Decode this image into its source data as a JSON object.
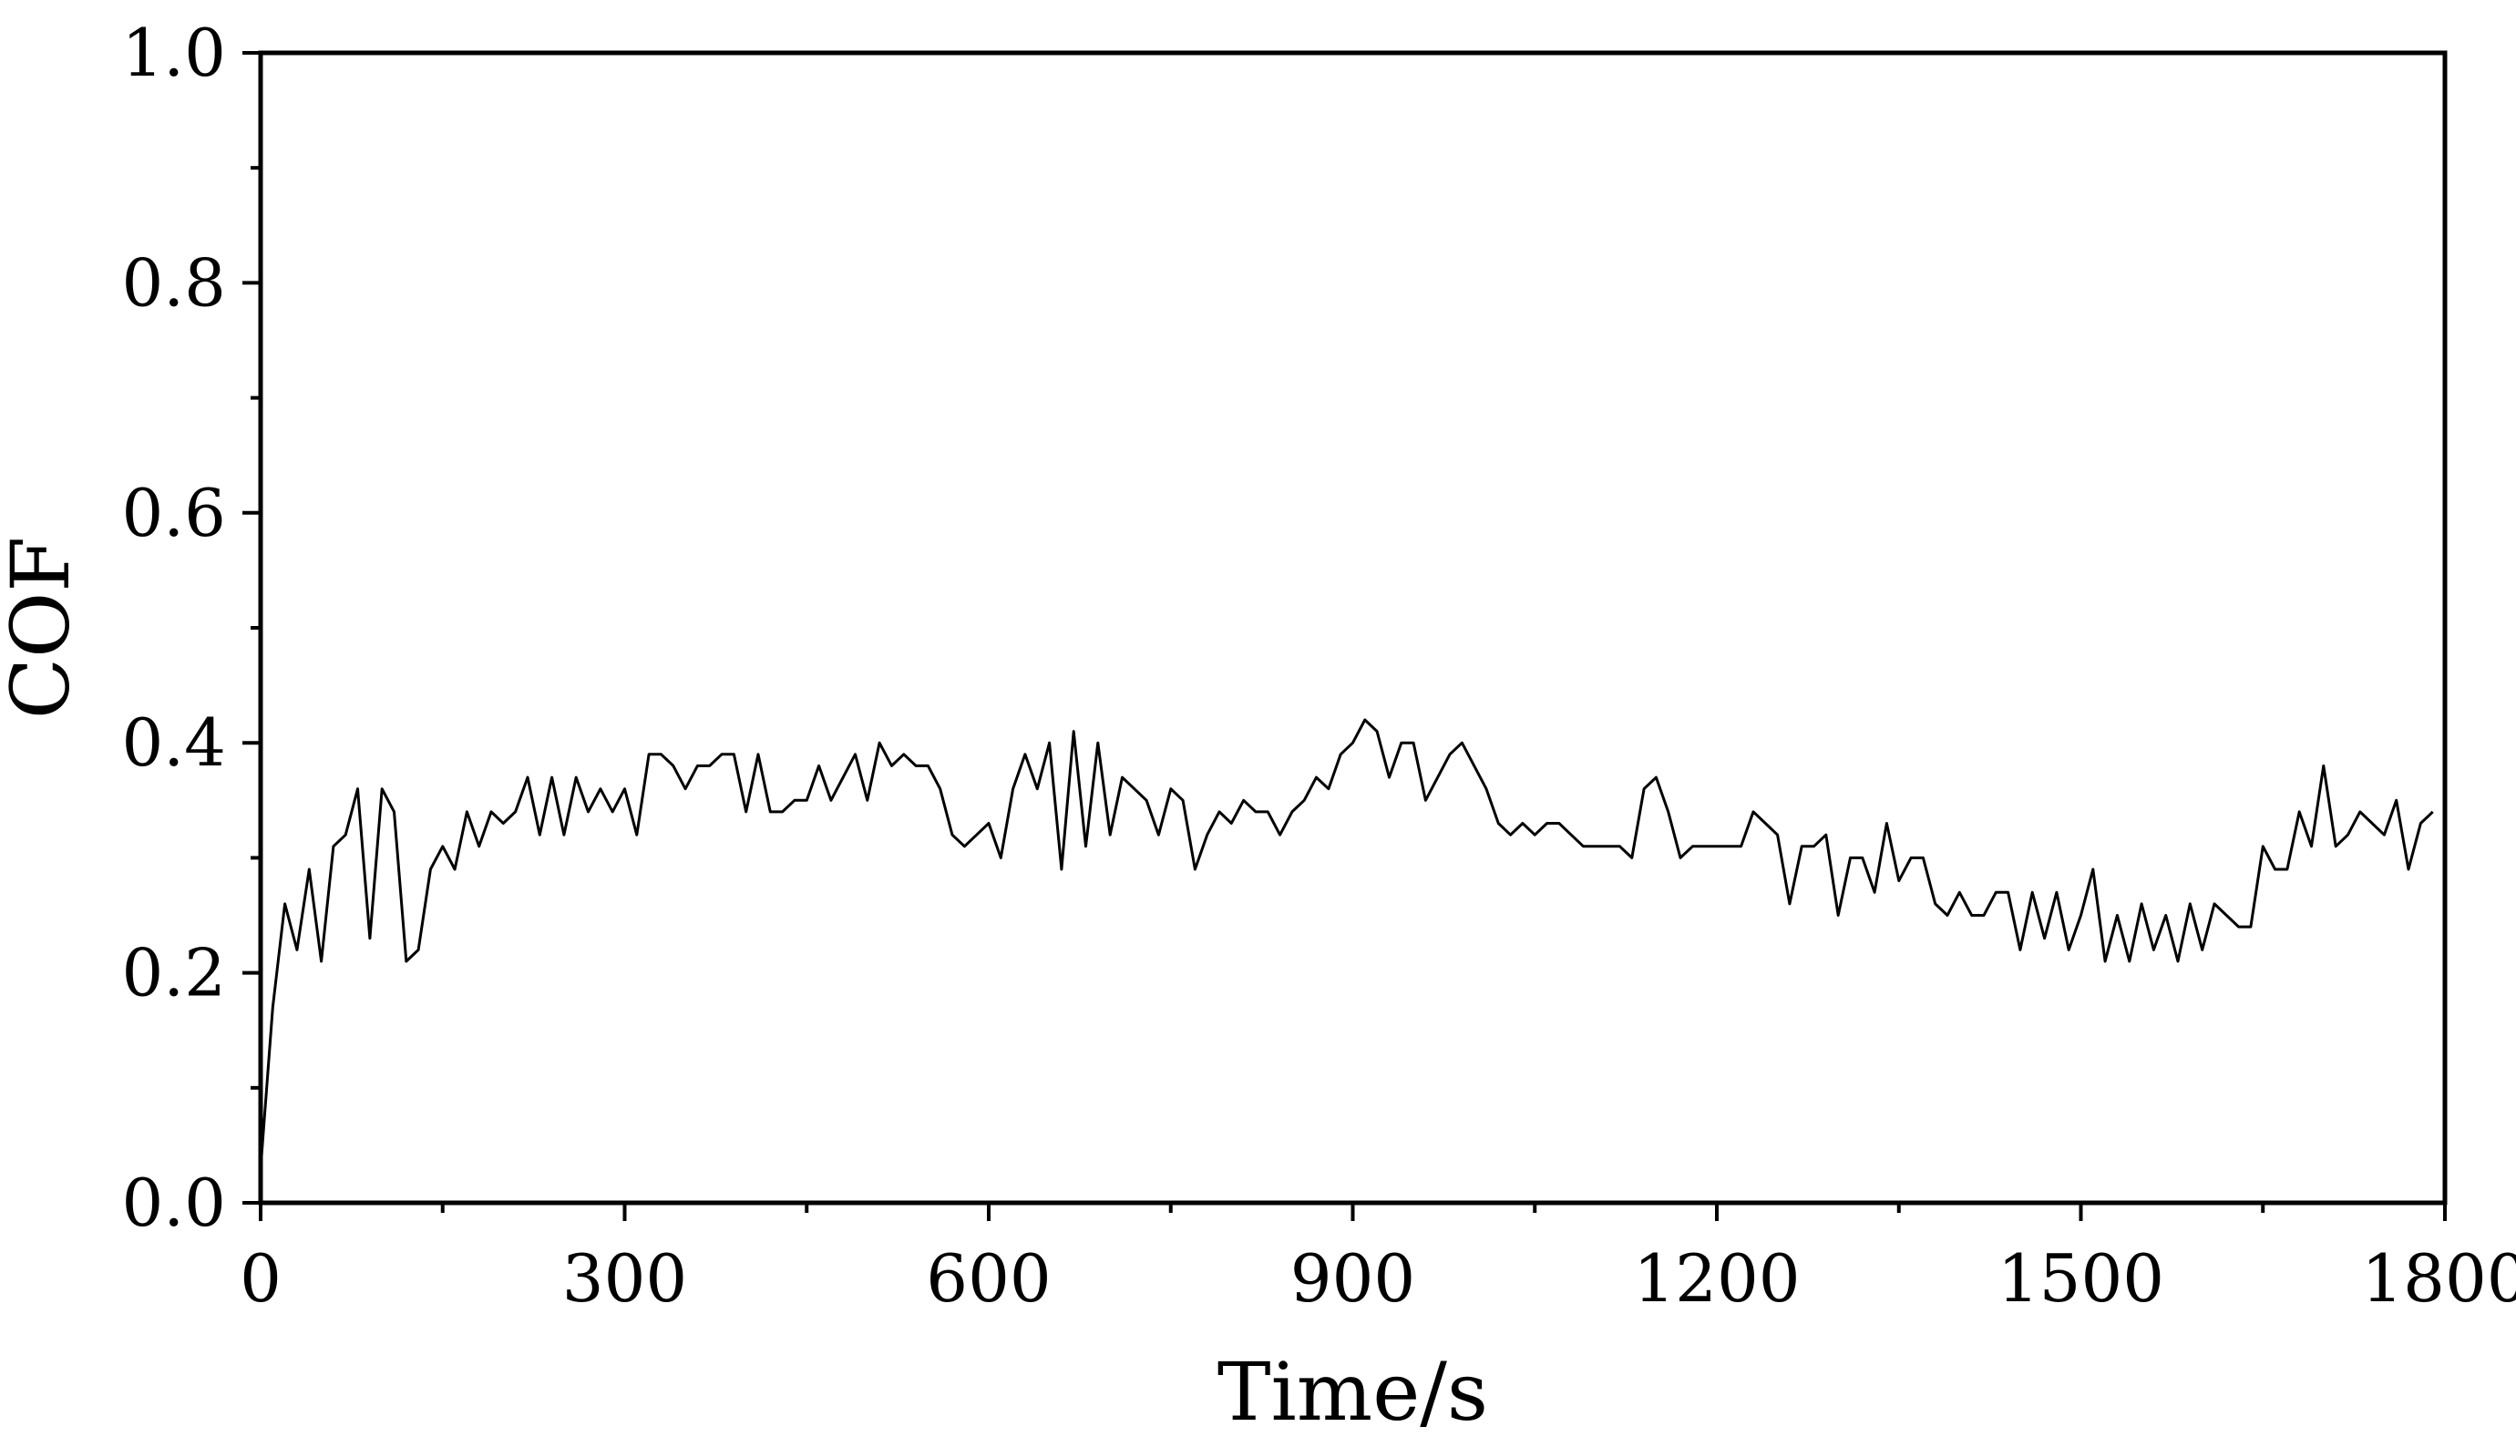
{
  "chart_data": {
    "type": "line",
    "xlabel": "Time/s",
    "ylabel": "COF",
    "xlim": [
      0,
      1800
    ],
    "ylim": [
      0.0,
      1.0
    ],
    "x_ticks": [
      0,
      300,
      600,
      900,
      1200,
      1500,
      1800
    ],
    "x_tick_labels": [
      "0",
      "300",
      "600",
      "900",
      "1200",
      "1500",
      "1800"
    ],
    "y_ticks": [
      0.0,
      0.2,
      0.4,
      0.6,
      0.8,
      1.0
    ],
    "y_tick_labels": [
      "0.0",
      "0.2",
      "0.4",
      "0.6",
      "0.8",
      "1.0"
    ],
    "grid": false,
    "line_color": "#000000",
    "series": [
      {
        "x": [
          0,
          10,
          20,
          30,
          40,
          50,
          60,
          70,
          80,
          90,
          100,
          110,
          120,
          130,
          140,
          150,
          160,
          170,
          180,
          190,
          200,
          210,
          220,
          230,
          240,
          250,
          260,
          270,
          280,
          290,
          300,
          310,
          320,
          330,
          340,
          350,
          360,
          370,
          380,
          390,
          400,
          410,
          420,
          430,
          440,
          450,
          460,
          470,
          480,
          490,
          500,
          510,
          520,
          530,
          540,
          550,
          560,
          570,
          580,
          590,
          600,
          610,
          620,
          630,
          640,
          650,
          660,
          670,
          680,
          690,
          700,
          710,
          720,
          730,
          740,
          750,
          760,
          770,
          780,
          790,
          800,
          810,
          820,
          830,
          840,
          850,
          860,
          870,
          880,
          890,
          900,
          910,
          920,
          930,
          940,
          950,
          960,
          970,
          980,
          990,
          1000,
          1010,
          1020,
          1030,
          1040,
          1050,
          1060,
          1070,
          1080,
          1090,
          1100,
          1110,
          1120,
          1130,
          1140,
          1150,
          1160,
          1170,
          1180,
          1190,
          1200,
          1210,
          1220,
          1230,
          1240,
          1250,
          1260,
          1270,
          1280,
          1290,
          1300,
          1310,
          1320,
          1330,
          1340,
          1350,
          1360,
          1370,
          1380,
          1390,
          1400,
          1410,
          1420,
          1430,
          1440,
          1450,
          1460,
          1470,
          1480,
          1490,
          1500,
          1510,
          1520,
          1530,
          1540,
          1550,
          1560,
          1570,
          1580,
          1590,
          1600,
          1610,
          1620,
          1630,
          1640,
          1650,
          1660,
          1670,
          1680,
          1690,
          1700,
          1710,
          1720,
          1730,
          1740,
          1750,
          1760,
          1770,
          1780,
          1790
        ],
        "y": [
          0.03,
          0.17,
          0.26,
          0.22,
          0.29,
          0.21,
          0.31,
          0.32,
          0.36,
          0.23,
          0.36,
          0.34,
          0.21,
          0.22,
          0.29,
          0.31,
          0.29,
          0.34,
          0.31,
          0.34,
          0.33,
          0.34,
          0.37,
          0.32,
          0.37,
          0.32,
          0.37,
          0.34,
          0.36,
          0.34,
          0.36,
          0.32,
          0.39,
          0.39,
          0.38,
          0.36,
          0.38,
          0.38,
          0.39,
          0.39,
          0.34,
          0.39,
          0.34,
          0.34,
          0.35,
          0.35,
          0.38,
          0.35,
          0.37,
          0.39,
          0.35,
          0.4,
          0.38,
          0.39,
          0.38,
          0.38,
          0.36,
          0.32,
          0.31,
          0.32,
          0.33,
          0.3,
          0.36,
          0.39,
          0.36,
          0.4,
          0.29,
          0.41,
          0.31,
          0.4,
          0.32,
          0.37,
          0.36,
          0.35,
          0.32,
          0.36,
          0.35,
          0.29,
          0.32,
          0.34,
          0.33,
          0.35,
          0.34,
          0.34,
          0.32,
          0.34,
          0.35,
          0.37,
          0.36,
          0.39,
          0.4,
          0.42,
          0.41,
          0.37,
          0.4,
          0.4,
          0.35,
          0.37,
          0.39,
          0.4,
          0.38,
          0.36,
          0.33,
          0.32,
          0.33,
          0.32,
          0.33,
          0.33,
          0.32,
          0.31,
          0.31,
          0.31,
          0.31,
          0.3,
          0.36,
          0.37,
          0.34,
          0.3,
          0.31,
          0.31,
          0.31,
          0.31,
          0.31,
          0.34,
          0.33,
          0.32,
          0.26,
          0.31,
          0.31,
          0.32,
          0.25,
          0.3,
          0.3,
          0.27,
          0.33,
          0.28,
          0.3,
          0.3,
          0.26,
          0.25,
          0.27,
          0.25,
          0.25,
          0.27,
          0.27,
          0.22,
          0.27,
          0.23,
          0.27,
          0.22,
          0.25,
          0.29,
          0.21,
          0.25,
          0.21,
          0.26,
          0.22,
          0.25,
          0.21,
          0.26,
          0.22,
          0.26,
          0.25,
          0.24,
          0.24,
          0.31,
          0.29,
          0.29,
          0.34,
          0.31,
          0.38,
          0.31,
          0.32,
          0.34,
          0.33,
          0.32,
          0.35,
          0.29,
          0.33,
          0.34
        ]
      }
    ]
  }
}
